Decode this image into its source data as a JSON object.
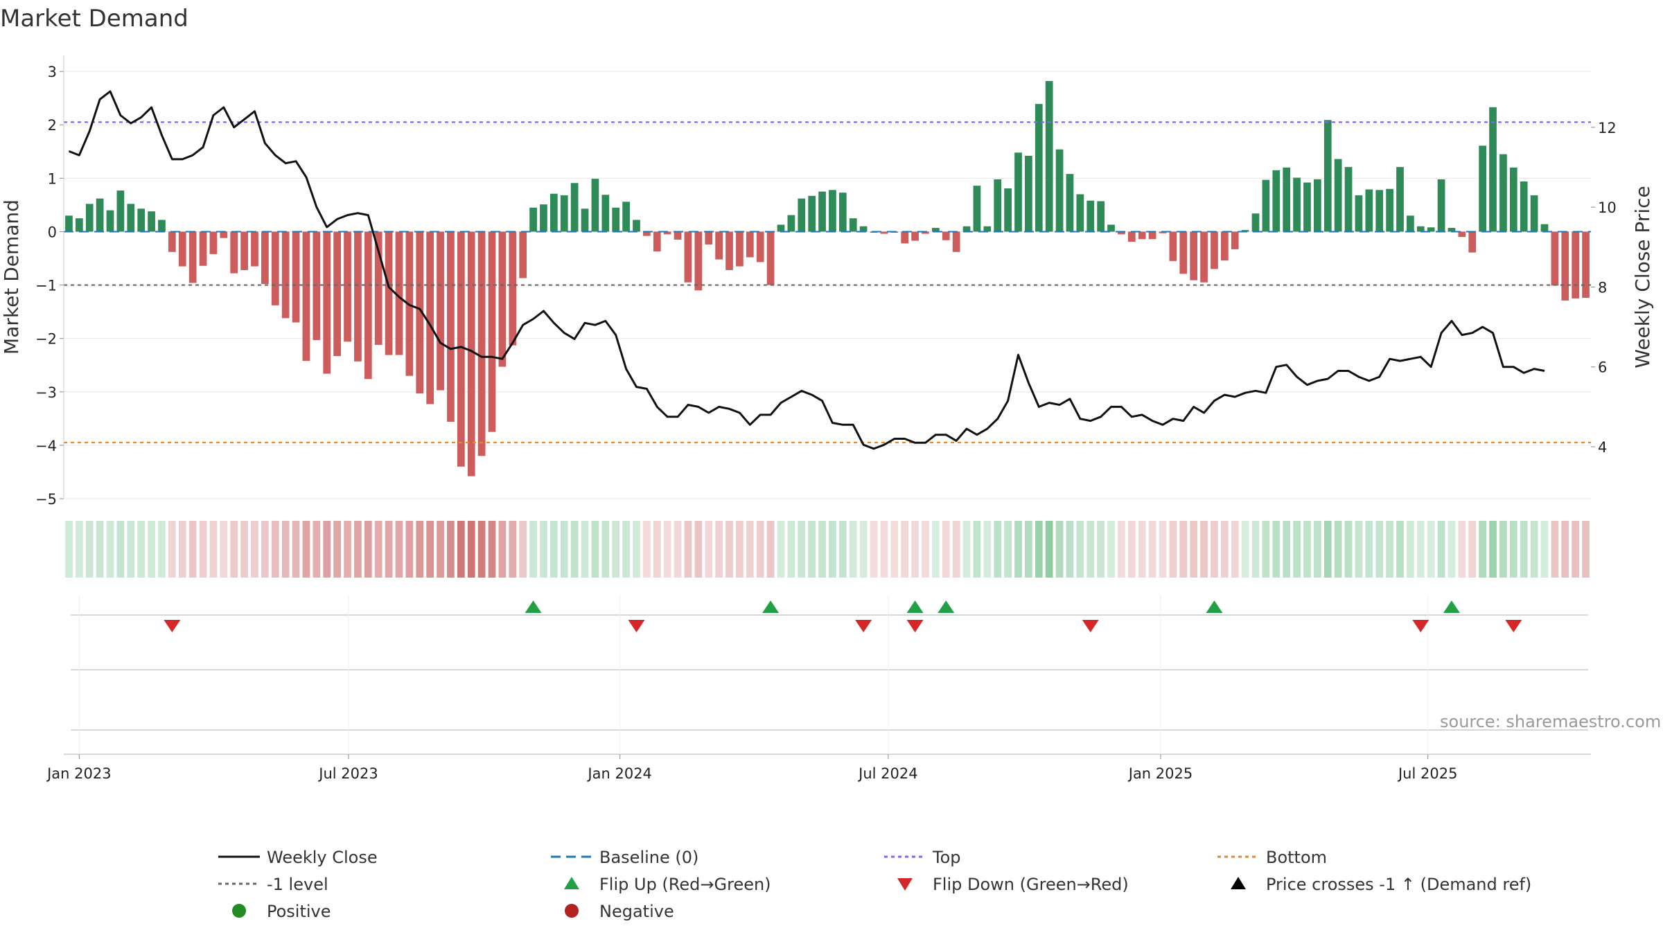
{
  "chart_data": {
    "type": "bar",
    "title": "Market Demand",
    "ylabel": "Market Demand",
    "y2label": "Weekly Close Price",
    "source": "source: sharemaestro.com",
    "ylim": [
      -5,
      3.3
    ],
    "y2lim": [
      2.7,
      13.8
    ],
    "yticks": [
      3,
      2,
      1,
      0,
      -1,
      -2,
      -3,
      -4,
      -5
    ],
    "yticklabels": [
      "3",
      "2",
      "1",
      "0",
      "−1",
      "−2",
      "−3",
      "−4",
      "−5"
    ],
    "y2ticks": [
      12,
      10,
      8,
      6,
      4
    ],
    "y2ticklabels": [
      "12",
      "10",
      "8",
      "6",
      "4"
    ],
    "x_start": "2022-12-26",
    "week_span": 145,
    "xticks": [
      {
        "label": "Jan 2023",
        "week": 1
      },
      {
        "label": "Jul 2023",
        "week": 27.1
      },
      {
        "label": "Jan 2024",
        "week": 53.4
      },
      {
        "label": "Jul 2024",
        "week": 79.4
      },
      {
        "label": "Jan 2025",
        "week": 105.8
      },
      {
        "label": "Jul 2025",
        "week": 131.7
      }
    ],
    "demand": [
      0.3,
      0.25,
      0.52,
      0.62,
      0.4,
      0.77,
      0.52,
      0.43,
      0.38,
      0.22,
      -0.38,
      -0.65,
      -0.96,
      -0.64,
      -0.42,
      -0.12,
      -0.78,
      -0.72,
      -0.65,
      -0.98,
      -1.38,
      -1.62,
      -1.7,
      -2.42,
      -2.03,
      -2.66,
      -2.33,
      -2.06,
      -2.43,
      -2.76,
      -2.12,
      -2.31,
      -2.31,
      -2.7,
      -3.03,
      -3.23,
      -2.97,
      -3.56,
      -4.4,
      -4.58,
      -4.2,
      -3.75,
      -2.53,
      -2.13,
      -0.87,
      0.45,
      0.51,
      0.71,
      0.68,
      0.91,
      0.43,
      0.99,
      0.69,
      0.45,
      0.56,
      0.22,
      -0.08,
      -0.37,
      -0.05,
      -0.15,
      -0.95,
      -1.1,
      -0.24,
      -0.52,
      -0.72,
      -0.65,
      -0.48,
      -0.57,
      -1.0,
      0.13,
      0.31,
      0.62,
      0.67,
      0.75,
      0.78,
      0.73,
      0.25,
      0.1,
      -0.02,
      -0.04,
      -0.02,
      -0.22,
      -0.17,
      -0.04,
      0.07,
      -0.16,
      -0.38,
      0.1,
      0.86,
      0.1,
      0.98,
      0.81,
      1.48,
      1.42,
      2.39,
      2.82,
      1.54,
      1.08,
      0.7,
      0.58,
      0.57,
      0.13,
      -0.05,
      -0.19,
      -0.14,
      -0.14,
      -0.03,
      -0.55,
      -0.79,
      -0.91,
      -0.95,
      -0.7,
      -0.54,
      -0.33,
      0.03,
      0.34,
      0.97,
      1.15,
      1.2,
      1.01,
      0.92,
      0.98,
      2.09,
      1.36,
      1.21,
      0.68,
      0.79,
      0.78,
      0.8,
      1.21,
      0.3,
      0.1,
      0.08,
      0.98,
      0.07,
      -0.1,
      -0.39,
      1.61,
      2.33,
      1.45,
      1.2,
      0.94,
      0.68,
      0.14,
      -1.01,
      -1.29,
      -1.25,
      -1.24
    ],
    "price": [
      11.4,
      11.3,
      11.9,
      12.7,
      12.9,
      12.3,
      12.1,
      12.25,
      12.5,
      11.8,
      11.2,
      11.2,
      11.3,
      11.5,
      12.3,
      12.5,
      12.0,
      12.2,
      12.4,
      11.6,
      11.3,
      11.1,
      11.15,
      10.75,
      10.0,
      9.5,
      9.7,
      9.8,
      9.85,
      9.8,
      8.9,
      8.0,
      7.75,
      7.55,
      7.45,
      7.05,
      6.6,
      6.45,
      6.5,
      6.4,
      6.25,
      6.25,
      6.2,
      6.6,
      7.05,
      7.2,
      7.4,
      7.1,
      6.85,
      6.7,
      7.1,
      7.05,
      7.15,
      6.8,
      5.95,
      5.5,
      5.45,
      5.0,
      4.75,
      4.75,
      5.05,
      5.0,
      4.85,
      5.0,
      4.95,
      4.85,
      4.55,
      4.8,
      4.8,
      5.1,
      5.25,
      5.4,
      5.3,
      5.15,
      4.6,
      4.55,
      4.55,
      4.05,
      3.95,
      4.05,
      4.2,
      4.2,
      4.1,
      4.1,
      4.3,
      4.3,
      4.15,
      4.45,
      4.3,
      4.45,
      4.7,
      5.15,
      6.3,
      5.6,
      5.0,
      5.1,
      5.05,
      5.2,
      4.7,
      4.65,
      4.75,
      5.0,
      5.0,
      4.75,
      4.8,
      4.65,
      4.55,
      4.7,
      4.65,
      5.0,
      4.85,
      5.15,
      5.3,
      5.25,
      5.35,
      5.4,
      5.35,
      6.0,
      6.05,
      5.75,
      5.55,
      5.65,
      5.7,
      5.9,
      5.9,
      5.75,
      5.65,
      5.75,
      6.2,
      6.15,
      6.2,
      6.25,
      6.0,
      6.85,
      7.15,
      6.8,
      6.85,
      7.0,
      6.85,
      6.0,
      6.0,
      5.85,
      5.95,
      5.9
    ],
    "flip_up_weeks": [
      45,
      68,
      82,
      85,
      111,
      134
    ],
    "flip_down_weeks": [
      10,
      55,
      77,
      82,
      99,
      131,
      140
    ],
    "top_level": 2.05,
    "bottom_level": -3.95,
    "minus1_level": -1,
    "baseline": 0,
    "colors": {
      "positive_bar": "#2e8b57",
      "negative_bar": "#cd5c5c",
      "price_line": "#111111",
      "baseline": "#1f77b4",
      "top": "#7b68ee",
      "bottom": "#e08a2c",
      "minus1": "#666666",
      "flip_up": "#22a045",
      "flip_down": "#d62728",
      "positive_dot": "#228b22",
      "negative_dot": "#b22222",
      "grid": "#e8e8e8"
    },
    "legend": [
      {
        "label": "Weekly Close",
        "kind": "line",
        "color": "#111111",
        "dash": ""
      },
      {
        "label": "Baseline (0)",
        "kind": "line",
        "color": "#1f77b4",
        "dash": "14 8"
      },
      {
        "label": "Top",
        "kind": "line",
        "color": "#7b68ee",
        "dash": "5 5"
      },
      {
        "label": "Bottom",
        "kind": "line",
        "color": "#e08a2c",
        "dash": "5 5"
      },
      {
        "label": "-1 level",
        "kind": "line",
        "color": "#666666",
        "dash": "5 5"
      },
      {
        "label": "Flip Up (Red→Green)",
        "kind": "tri-up",
        "color": "#22a045"
      },
      {
        "label": "Flip Down (Green→Red)",
        "kind": "tri-down",
        "color": "#d62728"
      },
      {
        "label": "Price crosses -1 ↑ (Demand ref)",
        "kind": "tri-up",
        "color": "#000000"
      },
      {
        "label": "Positive",
        "kind": "dot",
        "color": "#228b22"
      },
      {
        "label": "Negative",
        "kind": "dot",
        "color": "#b22222"
      }
    ]
  }
}
